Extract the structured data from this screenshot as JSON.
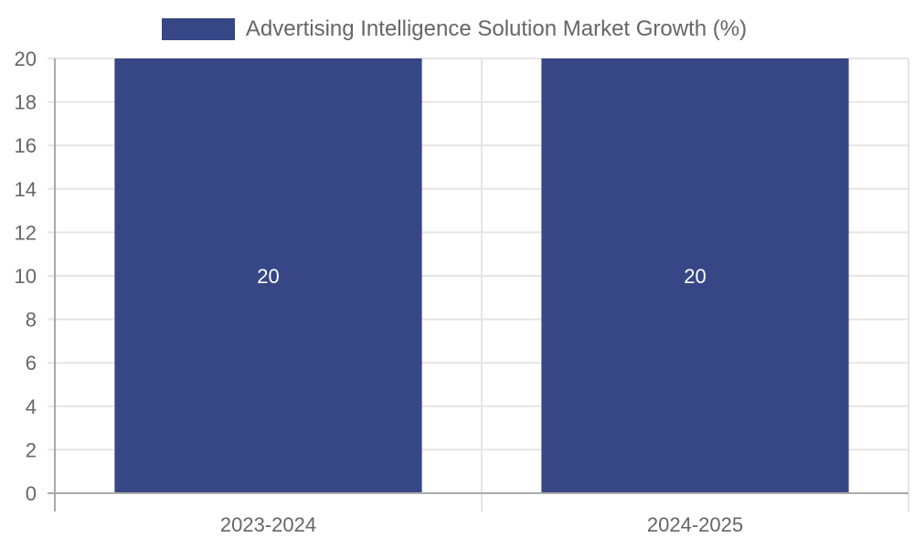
{
  "chart_data": {
    "type": "bar",
    "title": "",
    "categories": [
      "2023-2024",
      "2024-2025"
    ],
    "series": [
      {
        "name": "Advertising Intelligence Solution Market Growth (%)",
        "values": [
          20,
          20
        ],
        "color": "#374785"
      }
    ],
    "data_labels": [
      "20",
      "20"
    ],
    "xlabel": "",
    "ylabel": "",
    "ylim": [
      0,
      20
    ],
    "yticks": [
      "0",
      "2",
      "4",
      "6",
      "8",
      "10",
      "12",
      "14",
      "16",
      "18",
      "20"
    ],
    "grid": true,
    "legend_position": "top"
  },
  "legend": {
    "label": "Advertising Intelligence Solution Market Growth (%)",
    "color": "#374785"
  },
  "colors": {
    "bar": "#374785",
    "grid": "#e5e5e5",
    "axis": "#aaaaaa",
    "text": "#666666"
  }
}
